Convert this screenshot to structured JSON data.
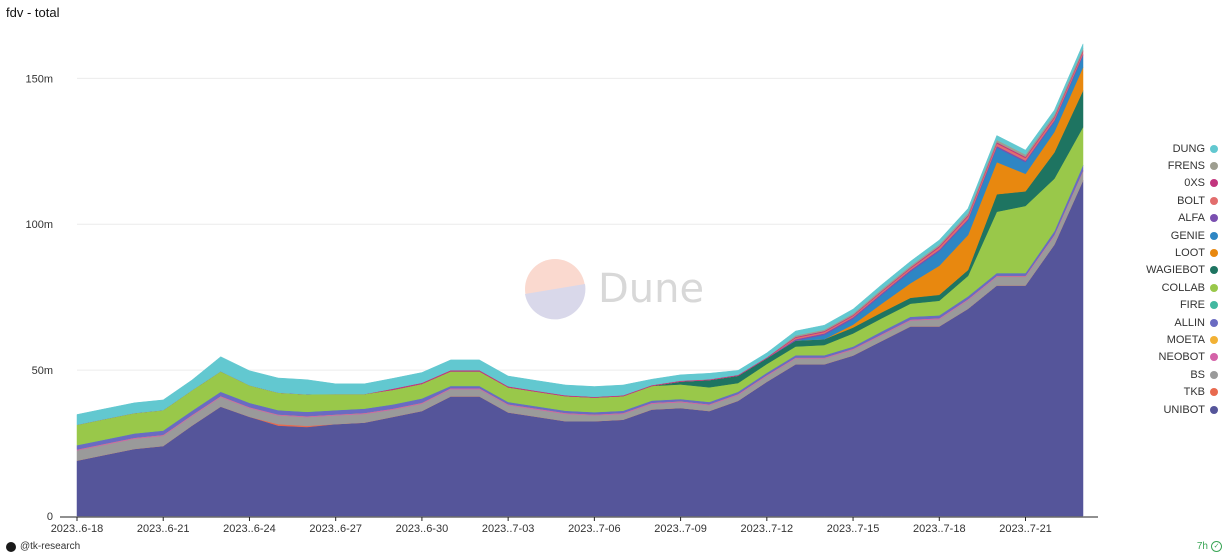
{
  "title": "fdv - total",
  "footer": {
    "author": "@tk-research",
    "age": "7h"
  },
  "watermark": {
    "text": "Dune"
  },
  "chart_data": {
    "type": "area",
    "stacked": true,
    "title": "fdv - total",
    "x": [
      "2023-06-18",
      "2023-06-19",
      "2023-06-20",
      "2023-06-21",
      "2023-06-22",
      "2023-06-23",
      "2023-06-24",
      "2023-06-25",
      "2023-06-26",
      "2023-06-27",
      "2023-06-28",
      "2023-06-29",
      "2023-06-30",
      "2023-07-01",
      "2023-07-02",
      "2023-07-03",
      "2023-07-04",
      "2023-07-05",
      "2023-07-06",
      "2023-07-07",
      "2023-07-08",
      "2023-07-09",
      "2023-07-10",
      "2023-07-11",
      "2023-07-12",
      "2023-07-13",
      "2023-07-14",
      "2023-07-15",
      "2023-07-16",
      "2023-07-17",
      "2023-07-18",
      "2023-07-19",
      "2023-07-20",
      "2023-07-21",
      "2023-07-22",
      "2023-07-23"
    ],
    "x_tick_labels": [
      "2023..6-18",
      "2023..6-21",
      "2023..6-24",
      "2023..6-27",
      "2023..6-30",
      "2023..7-03",
      "2023..7-06",
      "2023..7-09",
      "2023..7-12",
      "2023..7-15",
      "2023..7-18",
      "2023..7-21"
    ],
    "x_tick_indices": [
      0,
      3,
      6,
      9,
      12,
      15,
      18,
      21,
      24,
      27,
      30,
      33
    ],
    "y_ticks": [
      0,
      50,
      100,
      150
    ],
    "y_tick_labels": [
      "0",
      "50m",
      "100m",
      "150m"
    ],
    "ylim": [
      0,
      170
    ],
    "y_unit": "m",
    "legend_position": "right",
    "grid": true,
    "series": [
      {
        "name": "UNIBOT",
        "color": "#55559a",
        "values": [
          19,
          21,
          23,
          24,
          31,
          37.5,
          34,
          31,
          30.5,
          31.5,
          32,
          34,
          36,
          41,
          41,
          35.5,
          34,
          32.5,
          32.5,
          33,
          36.5,
          37,
          36,
          39.5,
          46,
          52,
          52,
          55,
          60,
          65,
          65,
          71,
          79,
          79,
          93,
          115
        ]
      },
      {
        "name": "TKB",
        "color": "#e86a4f",
        "values": [
          0,
          0,
          0,
          0,
          0,
          0,
          0,
          0.5,
          0.4,
          0,
          0,
          0,
          0,
          0,
          0,
          0,
          0,
          0,
          0,
          0,
          0,
          0,
          0,
          0,
          0,
          0,
          0,
          0,
          0,
          0,
          0,
          0,
          0,
          0,
          0,
          0
        ]
      },
      {
        "name": "BS",
        "color": "#9a9a9a",
        "values": [
          3.5,
          3.5,
          3.5,
          3.5,
          3.3,
          3.3,
          3,
          3,
          3,
          3,
          3,
          2.5,
          2.5,
          2.5,
          2.5,
          2.5,
          2.5,
          2.5,
          2,
          2,
          2,
          2,
          2,
          2,
          2,
          2,
          2,
          2,
          2,
          2,
          2.5,
          3,
          3,
          3,
          3,
          3
        ]
      },
      {
        "name": "NEOBOT",
        "color": "#d462a8",
        "values": [
          0.3,
          0.3,
          0.3,
          0.3,
          0.3,
          0.3,
          0.3,
          0.3,
          0.3,
          0.3,
          0.3,
          0.3,
          0.3,
          0.3,
          0.3,
          0.3,
          0.3,
          0.3,
          0.3,
          0.3,
          0.3,
          0.3,
          0.3,
          0.3,
          0.3,
          0.3,
          0.3,
          0.3,
          0.3,
          0.3,
          0.3,
          0.3,
          0.3,
          0.3,
          0.3,
          0.3
        ]
      },
      {
        "name": "MOETA",
        "color": "#f2b134",
        "values": [
          0,
          0,
          0,
          0,
          0,
          0,
          0,
          0,
          0,
          0,
          0,
          0,
          0,
          0,
          0,
          0,
          0,
          0,
          0,
          0,
          0,
          0,
          0,
          0,
          0,
          0,
          0,
          0,
          0,
          0,
          0,
          0,
          0,
          0,
          0,
          0
        ]
      },
      {
        "name": "ALLIN",
        "color": "#6a6bc2",
        "values": [
          1.5,
          1.5,
          1.5,
          1.5,
          1.5,
          1.5,
          1.5,
          1.5,
          1.5,
          1.5,
          1.5,
          1.5,
          1.5,
          0.8,
          0.8,
          0.8,
          0.8,
          0.8,
          0.8,
          0.8,
          0.8,
          0.8,
          0.8,
          0.8,
          0.8,
          0.8,
          0.8,
          0.8,
          1,
          1,
          1,
          1,
          1,
          1,
          1.3,
          2
        ]
      },
      {
        "name": "FIRE",
        "color": "#42b8a0",
        "values": [
          0,
          0,
          0,
          0,
          0,
          0,
          0,
          0,
          0,
          0,
          0,
          0,
          0,
          0,
          0,
          0,
          0,
          0,
          0,
          0,
          0,
          0,
          0,
          0,
          0,
          0,
          0,
          0,
          0,
          0,
          0,
          0,
          0,
          0,
          0,
          0
        ]
      },
      {
        "name": "COLLAB",
        "color": "#99c84a",
        "values": [
          7,
          7,
          7,
          7,
          7,
          7,
          6,
          6,
          6,
          5.5,
          5,
          5,
          5,
          5,
          5,
          5,
          5,
          5,
          5,
          5,
          5,
          5,
          5,
          3,
          3,
          3,
          3.5,
          4.5,
          4.5,
          4.5,
          5,
          7,
          21,
          23,
          18,
          13
        ]
      },
      {
        "name": "WAGIEBOT",
        "color": "#1e7461",
        "values": [
          0,
          0,
          0,
          0,
          0,
          0,
          0,
          0,
          0,
          0,
          0,
          0,
          0,
          0,
          0,
          0,
          0,
          0,
          0,
          0,
          0,
          1,
          2.5,
          2.5,
          2,
          2,
          2,
          2,
          2,
          2,
          2,
          2,
          6,
          5,
          9,
          12.5
        ]
      },
      {
        "name": "LOOT",
        "color": "#e8880f",
        "values": [
          0,
          0,
          0,
          0,
          0,
          0,
          0,
          0,
          0,
          0,
          0,
          0,
          0,
          0,
          0,
          0,
          0,
          0,
          0,
          0,
          0,
          0,
          0,
          0,
          0,
          0,
          0,
          1,
          3,
          5,
          10,
          12,
          11,
          6,
          7,
          8
        ]
      },
      {
        "name": "GENIE",
        "color": "#2e86c4",
        "values": [
          0,
          0,
          0,
          0,
          0,
          0,
          0,
          0,
          0,
          0,
          0,
          0,
          0,
          0,
          0,
          0,
          0,
          0,
          0,
          0,
          0,
          0,
          0,
          0,
          0,
          0,
          1.5,
          2,
          3,
          4,
          5,
          5,
          5,
          4,
          3.5,
          4
        ]
      },
      {
        "name": "ALFA",
        "color": "#7a4fb0",
        "values": [
          0,
          0,
          0,
          0,
          0,
          0,
          0,
          0,
          0,
          0,
          0,
          0,
          0,
          0,
          0,
          0,
          0,
          0,
          0,
          0,
          0,
          0,
          0,
          0,
          0,
          0.5,
          0.5,
          0.5,
          0.5,
          0.5,
          0.5,
          0.5,
          0.5,
          0.5,
          0.5,
          0.5
        ]
      },
      {
        "name": "BOLT",
        "color": "#e26d6d",
        "values": [
          0,
          0,
          0,
          0,
          0,
          0,
          0,
          0,
          0,
          0,
          0,
          0,
          0,
          0,
          0,
          0,
          0,
          0,
          0,
          0,
          0,
          0,
          0,
          0,
          0,
          0.5,
          0.5,
          0.5,
          0.6,
          0.6,
          0.8,
          0.9,
          0.9,
          0.9,
          0.8,
          0.8
        ]
      },
      {
        "name": "0XS",
        "color": "#c2357e",
        "values": [
          0,
          0,
          0,
          0,
          0,
          0,
          0,
          0,
          0,
          0,
          0,
          0.4,
          0.4,
          0.4,
          0.4,
          0.4,
          0.3,
          0.3,
          0.3,
          0.3,
          0.3,
          0.3,
          0.3,
          0.3,
          0.3,
          0.3,
          0.3,
          0.3,
          0.3,
          0.3,
          0.4,
          0.4,
          0.4,
          0.4,
          0.4,
          0.4
        ]
      },
      {
        "name": "FRENS",
        "color": "#9e9e90",
        "values": [
          0,
          0,
          0,
          0,
          0,
          0,
          0,
          0,
          0,
          0,
          0,
          0,
          0,
          0,
          0,
          0,
          0,
          0,
          0,
          0,
          0,
          0,
          0,
          0,
          0,
          0.5,
          0.5,
          0.5,
          0.6,
          0.6,
          0.6,
          0.8,
          0.8,
          0.8,
          0.8,
          0.8
        ]
      },
      {
        "name": "DUNG",
        "color": "#62c8d0",
        "values": [
          3.5,
          3.5,
          3.5,
          3.5,
          3.5,
          5,
          5,
          5,
          5,
          3.5,
          3.5,
          3.5,
          3.5,
          3.5,
          3.5,
          3.5,
          3.5,
          3.5,
          3.5,
          3.5,
          2,
          2,
          2,
          1.5,
          1.5,
          1.5,
          1.5,
          1.5,
          1.5,
          1.5,
          1.5,
          1.5,
          1.5,
          1.5,
          1.5,
          1.5
        ]
      }
    ]
  }
}
